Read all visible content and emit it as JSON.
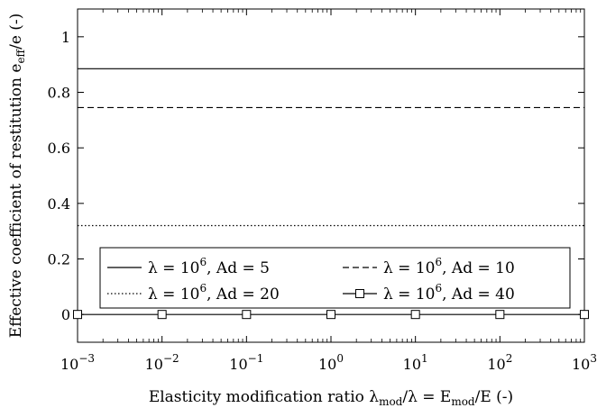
{
  "chart_data": {
    "type": "line",
    "xscale": "log",
    "xlim": [
      0.001,
      1000
    ],
    "ylim": [
      -0.1,
      1.1
    ],
    "xlabel": "Elasticity modification ratio λmod/λ = Emod/E (-)",
    "ylabel": "Effective coefficient of restitution eeff/e (-)",
    "xticks": [
      0.001,
      0.01,
      0.1,
      1,
      10,
      100,
      1000
    ],
    "xtick_labels": [
      {
        "base": "10",
        "exp": "−3"
      },
      {
        "base": "10",
        "exp": "−2"
      },
      {
        "base": "10",
        "exp": "−1"
      },
      {
        "base": "10",
        "exp": "0"
      },
      {
        "base": "10",
        "exp": "1"
      },
      {
        "base": "10",
        "exp": "2"
      },
      {
        "base": "10",
        "exp": "3"
      }
    ],
    "yticks": [
      0,
      0.2,
      0.4,
      0.6,
      0.8,
      1
    ],
    "ytick_labels": [
      "0",
      "0.2",
      "0.4",
      "0.6",
      "0.8",
      "1"
    ],
    "grid": false,
    "legend_position": "lower-center",
    "series": [
      {
        "name": "λ = 10^6, Ad = 5",
        "style": "solid",
        "marker": "none",
        "x": [
          0.001,
          0.01,
          0.1,
          1,
          10,
          100,
          1000
        ],
        "y": [
          0.885,
          0.885,
          0.885,
          0.885,
          0.885,
          0.885,
          0.885
        ]
      },
      {
        "name": "λ = 10^6, Ad = 10",
        "style": "dashed",
        "marker": "none",
        "x": [
          0.001,
          0.01,
          0.1,
          1,
          10,
          100,
          1000
        ],
        "y": [
          0.745,
          0.745,
          0.745,
          0.745,
          0.745,
          0.745,
          0.745
        ]
      },
      {
        "name": "λ = 10^6, Ad = 20",
        "style": "dotted",
        "marker": "none",
        "x": [
          0.001,
          0.01,
          0.1,
          1,
          10,
          100,
          1000
        ],
        "y": [
          0.32,
          0.32,
          0.32,
          0.32,
          0.32,
          0.32,
          0.32
        ]
      },
      {
        "name": "λ = 10^6, Ad = 40",
        "style": "solid",
        "marker": "square",
        "x": [
          0.001,
          0.01,
          0.1,
          1,
          10,
          100,
          1000
        ],
        "y": [
          0,
          0,
          0,
          0,
          0,
          0,
          0
        ]
      }
    ],
    "legend": [
      {
        "prefix": "λ = 10",
        "sup": "6",
        "suffix": ", Ad = 5"
      },
      {
        "prefix": "λ = 10",
        "sup": "6",
        "suffix": ", Ad = 10"
      },
      {
        "prefix": "λ = 10",
        "sup": "6",
        "suffix": ", Ad = 20"
      },
      {
        "prefix": "λ = 10",
        "sup": "6",
        "suffix": ", Ad = 40"
      }
    ],
    "xlabel_parts": {
      "pre": "Elasticity modification ratio λ",
      "sub1": "mod",
      "mid": "/λ = E",
      "sub2": "mod",
      "post": "/E (-)"
    },
    "ylabel_parts": {
      "pre": "Effective coefficient of restitution e",
      "sub": "eff",
      "post": "/e (-)"
    }
  }
}
